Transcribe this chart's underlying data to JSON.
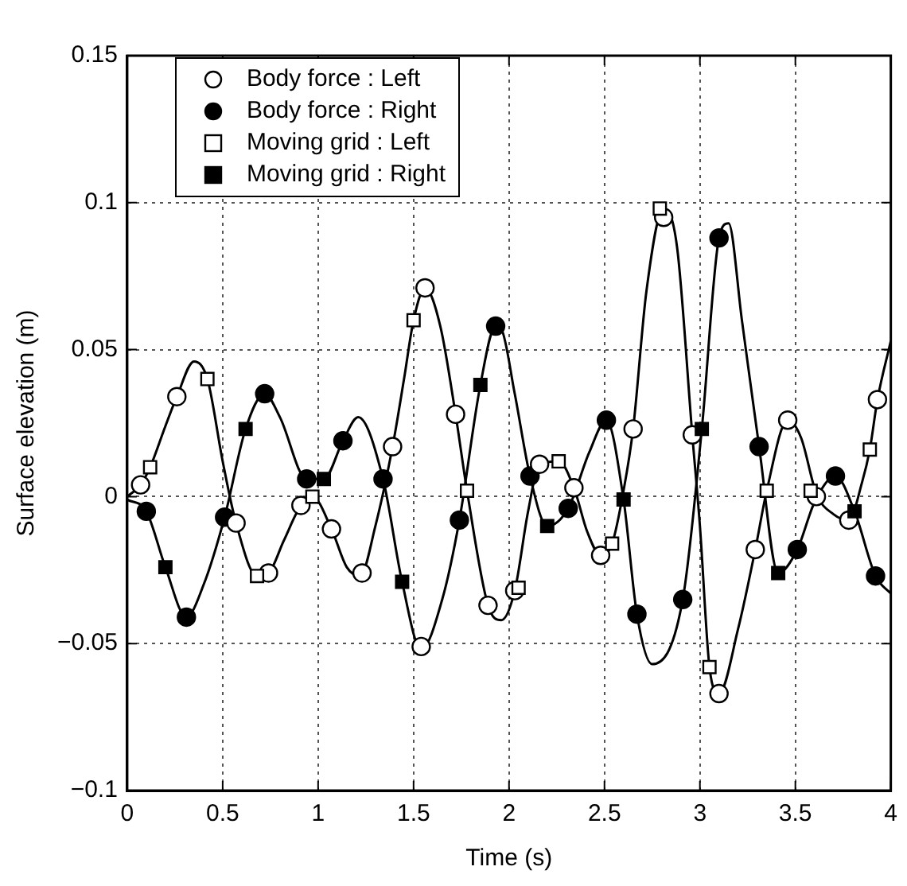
{
  "chart_data": {
    "type": "scatter",
    "xlabel": "Time (s)",
    "ylabel": "Surface elevation (m)",
    "xlim": [
      0,
      4
    ],
    "xticks": [
      0,
      0.5,
      1,
      1.5,
      2,
      2.5,
      3,
      3.5,
      4
    ],
    "ylim": [
      -0.1,
      0.15
    ],
    "yticks": [
      {
        "value": -0.1,
        "label": "−0.1"
      },
      {
        "value": -0.05,
        "label": "−0.05"
      },
      0,
      0.05,
      0.1,
      0.15
    ],
    "grid": true,
    "legend": "top left",
    "series": [
      {
        "type": "line",
        "color": "#000000",
        "marker": "none",
        "line_style": "solid",
        "x": [
          0,
          0.07,
          0.12,
          0.2,
          0.26,
          0.35,
          0.42,
          0.5,
          0.57,
          0.68,
          0.74,
          0.82,
          0.91,
          0.97,
          1.07,
          1.15,
          1.22,
          1.3,
          1.39,
          1.45,
          1.5,
          1.56,
          1.64,
          1.72,
          1.78,
          1.89,
          1.96,
          2.03,
          2.1,
          2.16,
          2.26,
          2.34,
          2.41,
          2.48,
          2.54,
          2.6,
          2.65,
          2.72,
          2.81,
          2.88,
          2.96,
          3.0,
          3.05,
          3.1,
          3.2,
          3.29,
          3.35,
          3.46,
          3.53,
          3.61,
          3.7,
          3.78,
          3.85,
          3.89,
          3.93,
          4.0
        ],
        "values": [
          0,
          0.004,
          0.01,
          0.024,
          0.034,
          0.046,
          0.04,
          0.012,
          -0.009,
          -0.027,
          -0.026,
          -0.015,
          -0.003,
          0,
          -0.011,
          -0.024,
          -0.027,
          -0.01,
          0.017,
          0.04,
          0.06,
          0.071,
          0.058,
          0.028,
          0.002,
          -0.037,
          -0.042,
          -0.032,
          -0.005,
          0.011,
          0.012,
          0.003,
          -0.012,
          -0.02,
          -0.016,
          0.002,
          0.023,
          0.07,
          0.098,
          0.085,
          0.021,
          -0.01,
          -0.058,
          -0.067,
          -0.045,
          -0.018,
          0.002,
          0.026,
          0.02,
          0.001,
          -0.006,
          -0.008,
          0.005,
          0.016,
          0.033,
          0.053
        ]
      },
      {
        "type": "line",
        "color": "#000000",
        "marker": "none",
        "line_style": "solid",
        "x": [
          0,
          0.1,
          0.2,
          0.31,
          0.4,
          0.51,
          0.62,
          0.72,
          0.8,
          0.94,
          1.03,
          1.13,
          1.21,
          1.34,
          1.44,
          1.54,
          1.65,
          1.74,
          1.85,
          1.93,
          1.96,
          2.03,
          2.11,
          2.2,
          2.31,
          2.42,
          2.51,
          2.6,
          2.67,
          2.75,
          2.91,
          3.01,
          3.1,
          3.15,
          3.22,
          3.31,
          3.41,
          3.51,
          3.6,
          3.71,
          3.81,
          3.92,
          4.0
        ],
        "values": [
          -0.001,
          -0.005,
          -0.024,
          -0.041,
          -0.03,
          -0.007,
          0.023,
          0.035,
          0.027,
          0.006,
          0.006,
          0.019,
          0.027,
          0.006,
          -0.029,
          -0.052,
          -0.035,
          -0.008,
          0.038,
          0.058,
          0.057,
          0.035,
          0.007,
          -0.01,
          -0.004,
          0.015,
          0.026,
          -0.001,
          -0.04,
          -0.057,
          -0.035,
          0.023,
          0.088,
          0.093,
          0.06,
          0.017,
          -0.026,
          -0.018,
          -0.002,
          0.007,
          -0.005,
          -0.027,
          -0.033
        ]
      },
      {
        "name": "Body force : Left",
        "type": "scatter",
        "color": "#ffffff",
        "marker": "circle",
        "x": [
          0.07,
          0.26,
          0.57,
          0.74,
          0.91,
          1.07,
          1.23,
          1.39,
          1.54,
          1.56,
          1.72,
          1.89,
          2.03,
          2.16,
          2.34,
          2.48,
          2.65,
          2.81,
          2.96,
          3.1,
          3.29,
          3.46,
          3.61,
          3.78,
          3.93
        ],
        "values": [
          0.004,
          0.034,
          -0.009,
          -0.026,
          -0.003,
          -0.011,
          -0.026,
          0.017,
          -0.051,
          0.071,
          0.028,
          -0.037,
          -0.032,
          0.011,
          0.003,
          -0.02,
          0.023,
          0.095,
          0.021,
          -0.067,
          -0.018,
          0.026,
          0.0,
          -0.008,
          0.033
        ]
      },
      {
        "name": "Body force : Right",
        "type": "scatter",
        "color": "#000000",
        "marker": "circle",
        "x": [
          0.1,
          0.31,
          0.51,
          0.72,
          0.94,
          1.13,
          1.34,
          1.74,
          1.93,
          2.11,
          2.31,
          2.51,
          2.67,
          2.91,
          3.1,
          3.31,
          3.51,
          3.71,
          3.92
        ],
        "values": [
          -0.005,
          -0.041,
          -0.007,
          0.035,
          0.006,
          0.019,
          0.006,
          -0.008,
          0.058,
          0.007,
          -0.004,
          0.026,
          -0.04,
          -0.035,
          0.088,
          0.017,
          -0.018,
          0.007,
          -0.027
        ]
      },
      {
        "name": "Moving grid : Left",
        "type": "scatter",
        "color": "#ffffff",
        "marker": "square",
        "x": [
          0.12,
          0.42,
          0.68,
          0.97,
          1.5,
          1.78,
          2.05,
          2.26,
          2.54,
          2.79,
          3.05,
          3.35,
          3.58,
          3.89
        ],
        "values": [
          0.01,
          0.04,
          -0.027,
          0,
          0.06,
          0.002,
          -0.031,
          0.012,
          -0.016,
          0.098,
          -0.058,
          0.002,
          0.002,
          0.016
        ]
      },
      {
        "name": "Moving grid : Right",
        "type": "scatter",
        "color": "#000000",
        "marker": "square",
        "x": [
          0.2,
          0.62,
          1.03,
          1.44,
          1.85,
          2.2,
          2.6,
          3.01,
          3.41,
          3.81
        ],
        "values": [
          -0.024,
          0.023,
          0.006,
          -0.029,
          0.038,
          -0.01,
          -0.001,
          0.023,
          -0.026,
          -0.005
        ]
      }
    ]
  }
}
